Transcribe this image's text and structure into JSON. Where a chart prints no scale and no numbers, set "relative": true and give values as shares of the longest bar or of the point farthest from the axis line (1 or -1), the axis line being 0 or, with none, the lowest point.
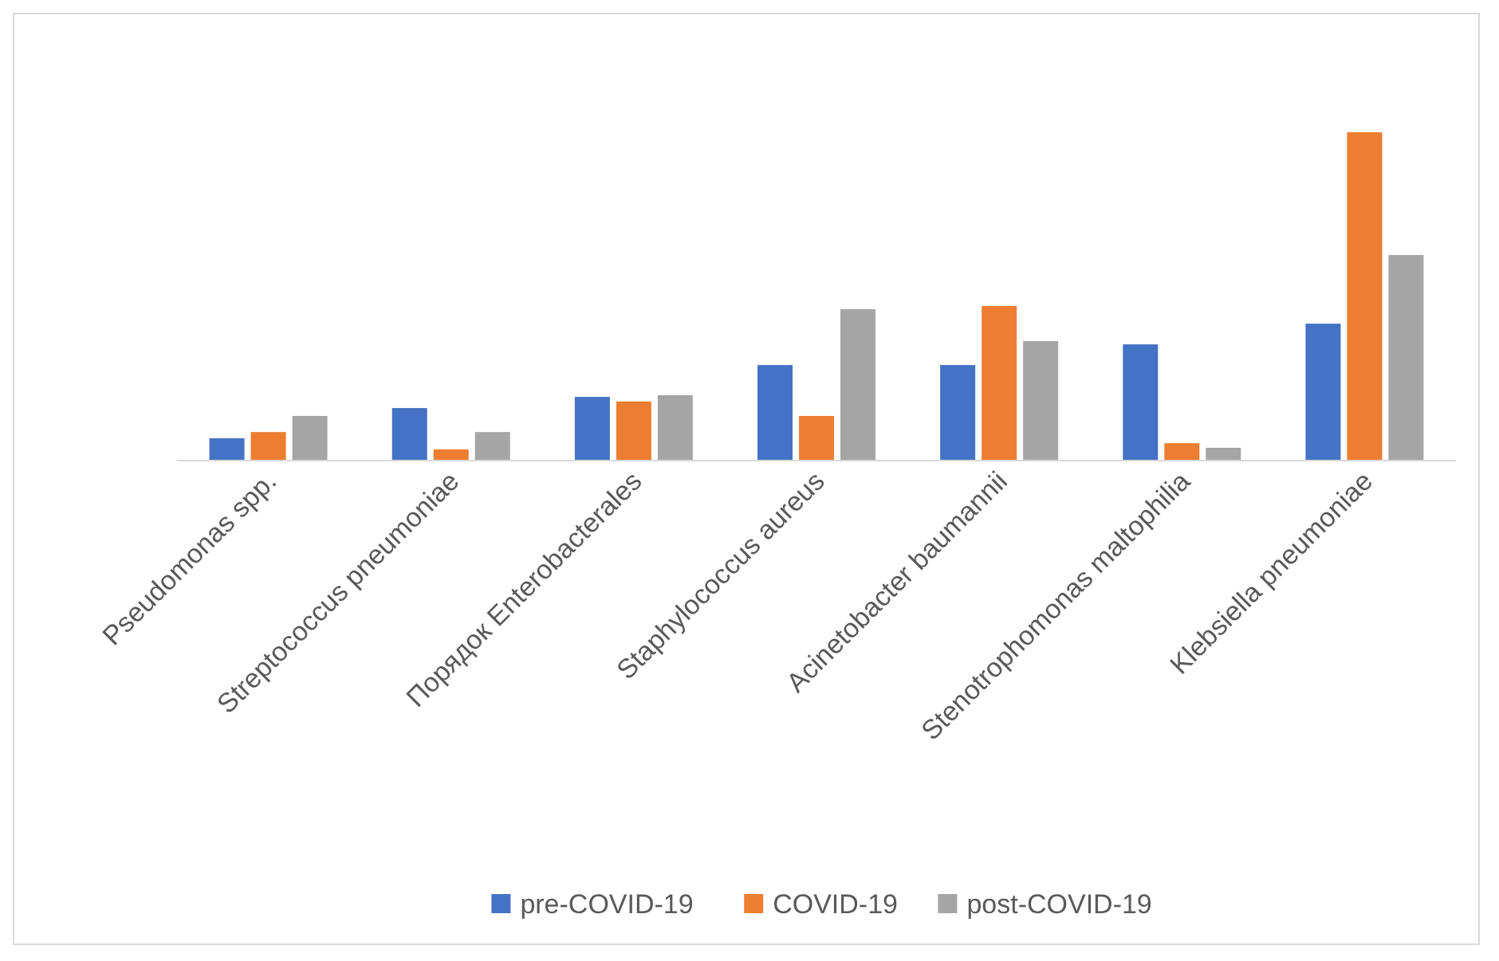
{
  "chart_data": {
    "type": "bar",
    "relative": true,
    "legend": "bottom",
    "categories": [
      "Pseudomonas spp.",
      "Streptococcus pneumoniae",
      "Порядок Enterobacterales",
      "Staphylococcus aureus",
      "Acinetobacter baumannii",
      "Stenotrophomonas maltophilia",
      "Klebsiella pneumoniae"
    ],
    "series": [
      {
        "name": "pre-COVID-19",
        "color": "#4472c4",
        "values": [
          0.068,
          0.16,
          0.194,
          0.291,
          0.291,
          0.354,
          0.417
        ]
      },
      {
        "name": "COVID-19",
        "color": "#ed7d31",
        "values": [
          0.087,
          0.034,
          0.18,
          0.136,
          0.471,
          0.053,
          1
        ]
      },
      {
        "name": "post-COVID-19",
        "color": "#a5a5a5",
        "values": [
          0.136,
          0.087,
          0.199,
          0.461,
          0.364,
          0.039,
          0.626
        ]
      }
    ]
  }
}
